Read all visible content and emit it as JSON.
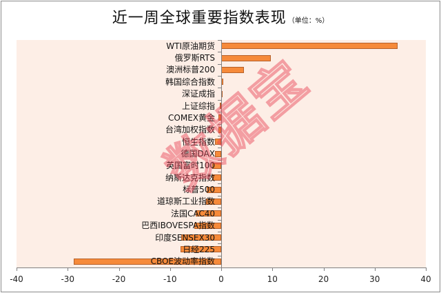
{
  "chart_data": {
    "type": "bar",
    "orientation": "horizontal",
    "title": "近一周全球重要指数表现",
    "unit_label": "（单位：%）",
    "xlabel": "",
    "ylabel": "",
    "xlim": [
      -40,
      40
    ],
    "xticks": [
      -40,
      -30,
      -20,
      -10,
      0,
      10,
      20,
      30,
      40
    ],
    "grid": false,
    "legend": null,
    "categories": [
      "WTI原油期货",
      "俄罗斯RTS",
      "澳洲标普200",
      "韩国综合指数",
      "深证成指",
      "上证综指",
      "COMEX黄金",
      "台湾加权指数",
      "恒生指数",
      "德国DAX",
      "英国富时100",
      "纳斯达克指数",
      "标普500",
      "道琼斯工业指数",
      "法国CAC40",
      "巴西IBOVESPA指数",
      "印度SENSEX30",
      "日经225",
      "CBOE波动率指数"
    ],
    "values": [
      34.5,
      9.7,
      4.5,
      0.4,
      0.1,
      -0.3,
      -0.5,
      -0.5,
      -1.2,
      -1.2,
      -1.7,
      -1.8,
      -2.8,
      -2.9,
      -5.0,
      -5.3,
      -7.8,
      -8.0,
      -28.8
    ],
    "bar_color": "#f68a3a",
    "plot_background": "#fdeee6"
  },
  "watermark": "数据宝"
}
